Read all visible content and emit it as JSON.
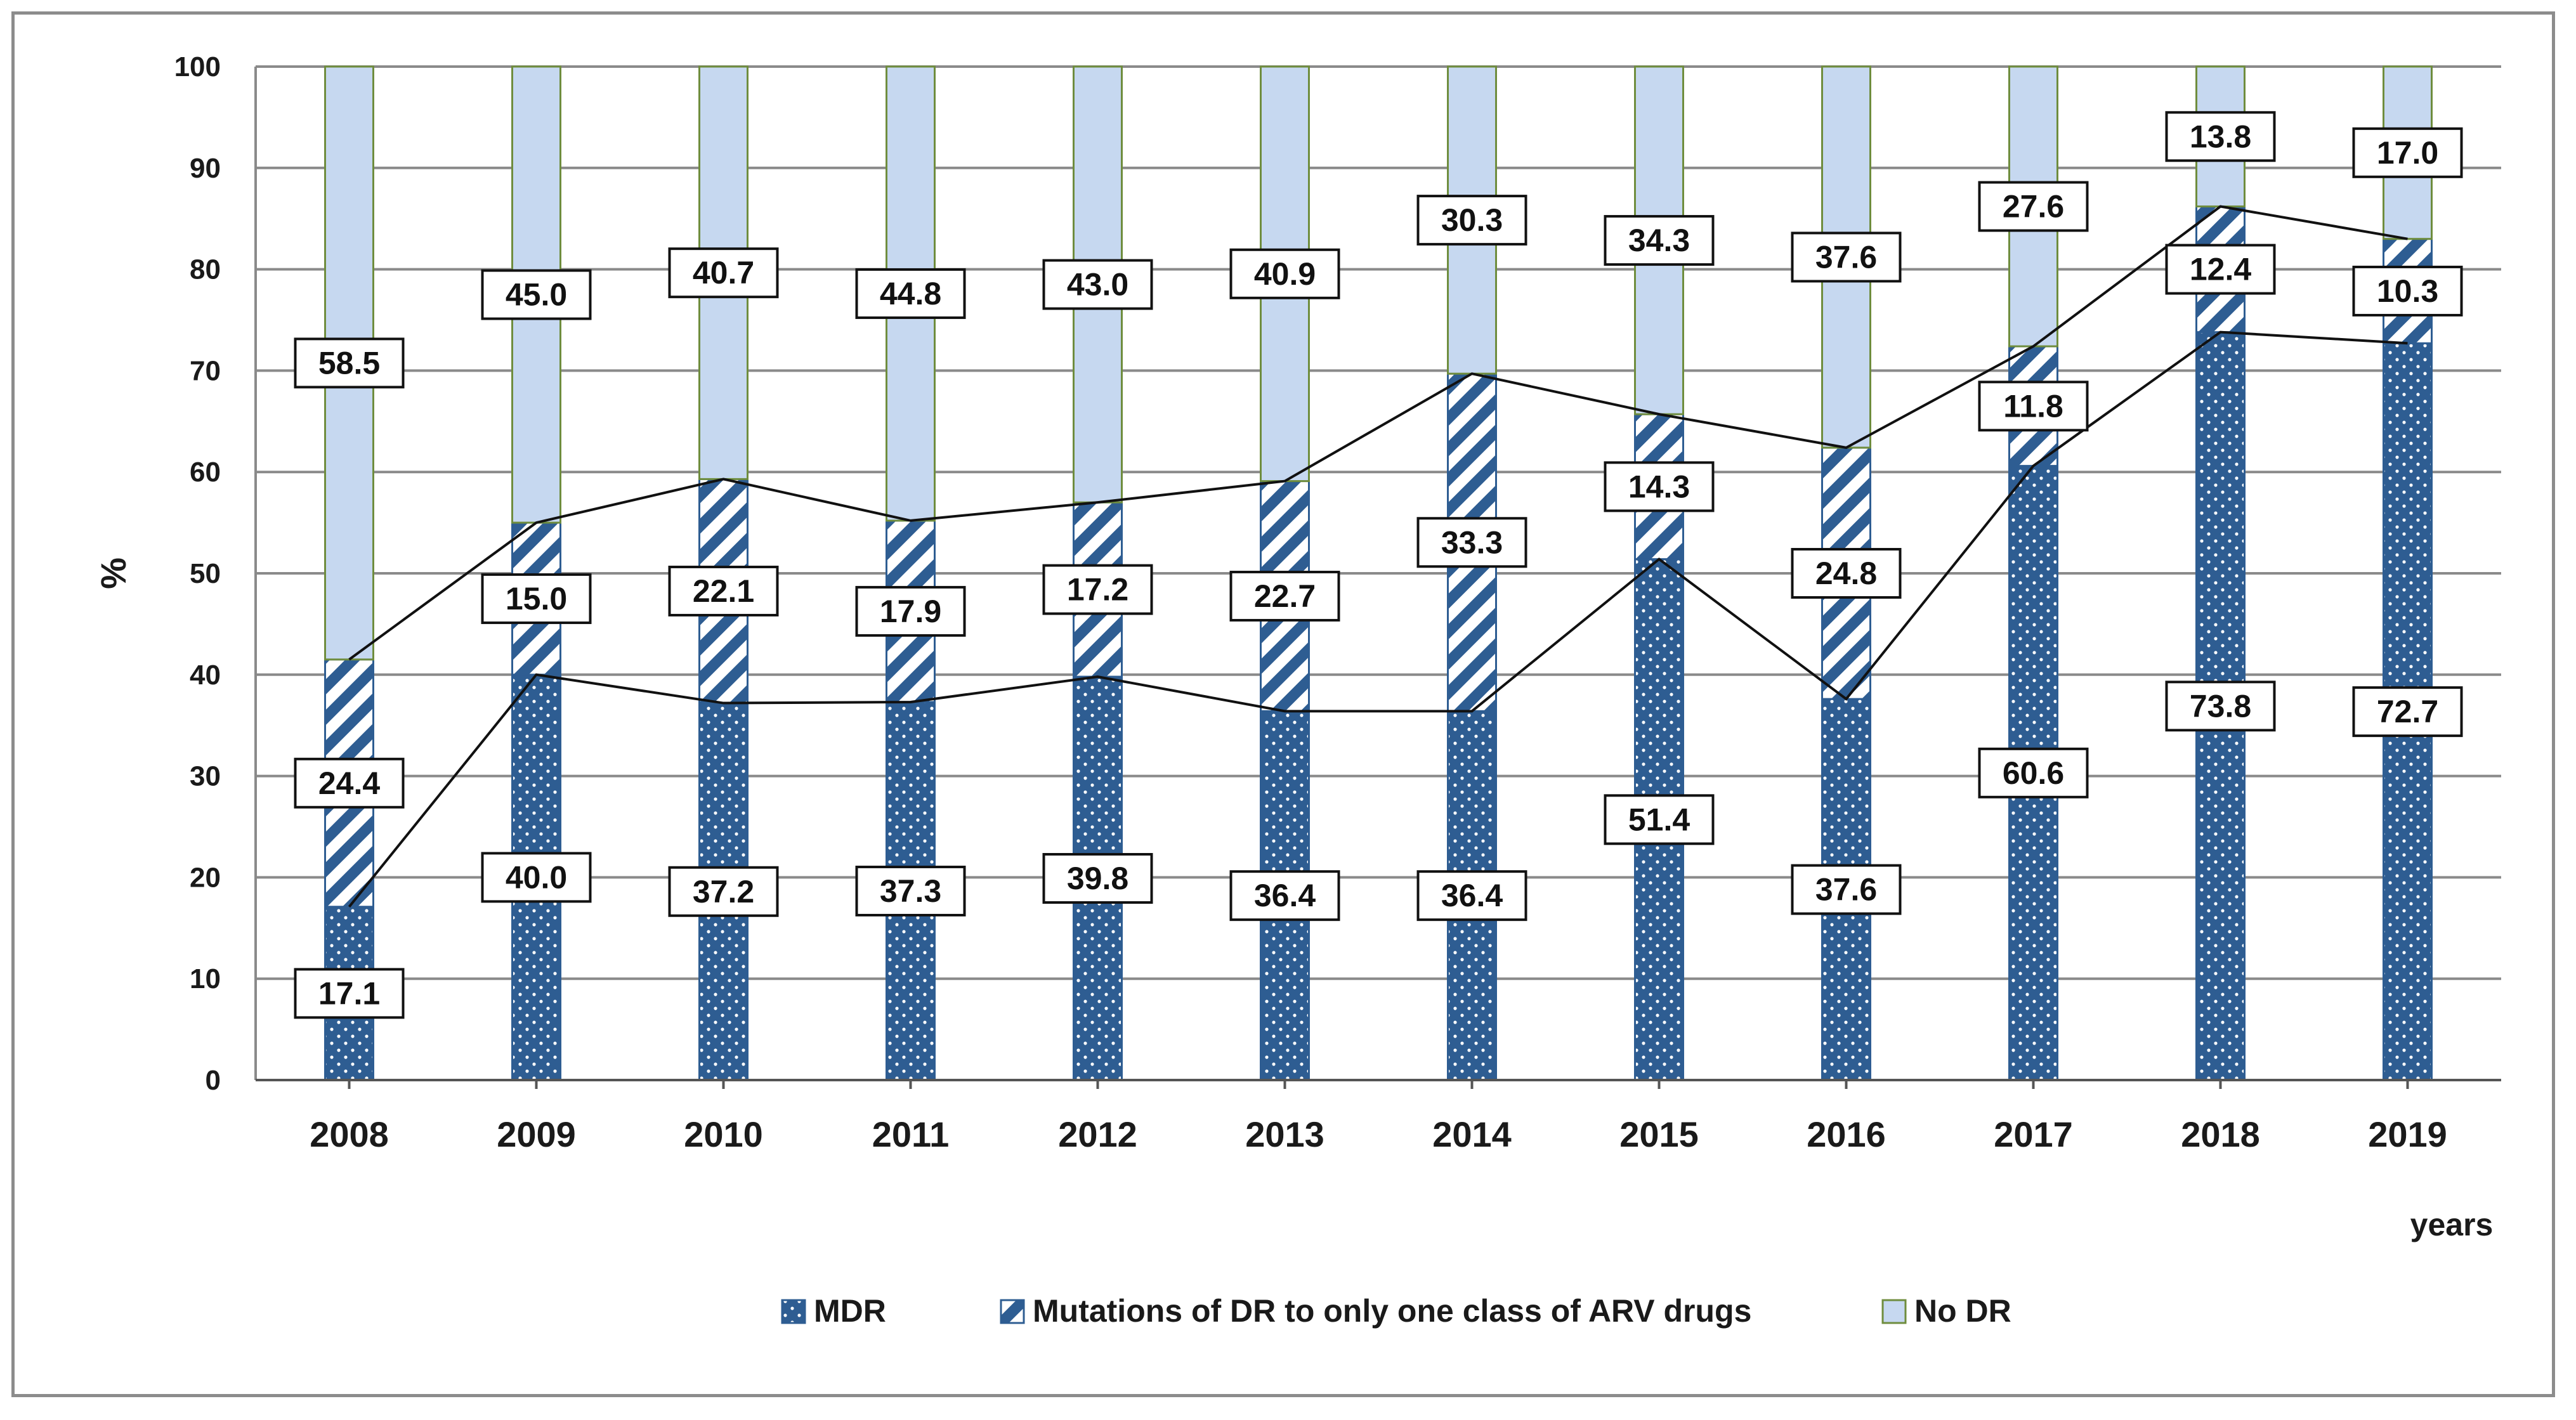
{
  "chart_data": {
    "type": "bar",
    "stacked": true,
    "percent_stacked": true,
    "title": "",
    "xlabel": "years",
    "ylabel": "%",
    "ylim": [
      0,
      100
    ],
    "ytick_step": 10,
    "grid": true,
    "legend_position": "bottom",
    "categories": [
      "2008",
      "2009",
      "2010",
      "2011",
      "2012",
      "2013",
      "2014",
      "2015",
      "2016",
      "2017",
      "2018",
      "2019"
    ],
    "series": [
      {
        "name": "MDR",
        "pattern": "dots",
        "color": "#2e5d92",
        "values": [
          17.1,
          40.0,
          37.2,
          37.3,
          39.8,
          36.4,
          36.4,
          51.4,
          37.6,
          60.6,
          73.8,
          72.7
        ],
        "labels": [
          "17.1",
          "40.0",
          "37.2",
          "37.3",
          "39.8",
          "36.4",
          "36.4",
          "51.4",
          "37.6",
          "60.6",
          "73.8",
          "72.7"
        ]
      },
      {
        "name": "Mutations of DR to only one class of ARV drugs",
        "pattern": "diagonal-stripes",
        "color": "#2e5d92",
        "values": [
          24.4,
          15.0,
          22.1,
          17.9,
          17.2,
          22.7,
          33.3,
          14.3,
          24.8,
          11.8,
          12.4,
          10.3
        ],
        "labels": [
          "24.4",
          "15.0",
          "22.1",
          "17.9",
          "17.2",
          "22.7",
          "33.3",
          "14.3",
          "24.8",
          "11.8",
          "12.4",
          "10.3"
        ]
      },
      {
        "name": "No DR",
        "pattern": "solid",
        "color": "#c6d8f0",
        "values": [
          58.5,
          45.0,
          40.7,
          44.8,
          43.0,
          40.9,
          30.3,
          34.3,
          37.6,
          27.6,
          13.8,
          17.0
        ],
        "labels": [
          "58.5",
          "45.0",
          "40.7",
          "44.8",
          "43.0",
          "40.9",
          "30.3",
          "34.3",
          "37.6",
          "27.6",
          "13.8",
          "17.0"
        ]
      }
    ],
    "series_lines": true
  }
}
